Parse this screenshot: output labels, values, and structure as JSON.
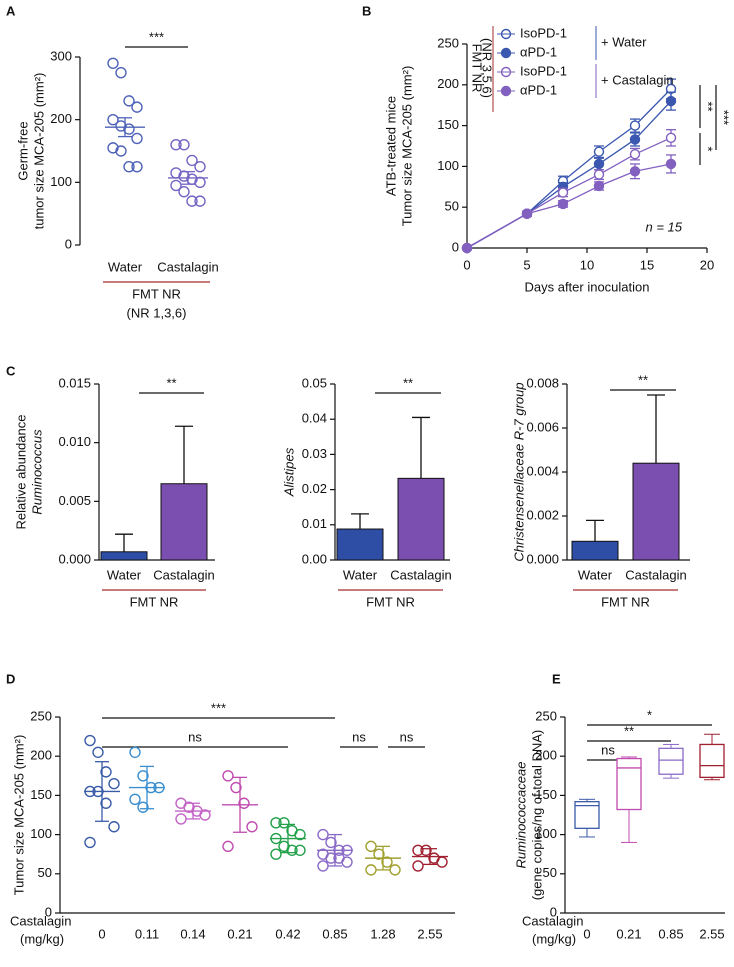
{
  "chart_data": [
    {
      "type": "strip",
      "panel": "A",
      "ylabel": [
        "Germ-free",
        "tumor size MCA-205 (mm²)"
      ],
      "categories": [
        "Water",
        "Castalagin"
      ],
      "colors": [
        "#4f63b8",
        "#7466c4"
      ],
      "points": [
        [
          290,
          275,
          230,
          220,
          200,
          190,
          185,
          170,
          155,
          150,
          125,
          125
        ],
        [
          160,
          160,
          135,
          125,
          115,
          110,
          105,
          100,
          95,
          85,
          70,
          70
        ]
      ],
      "means": [
        188,
        107
      ],
      "errors": [
        15,
        10
      ],
      "ylim": [
        0,
        300
      ],
      "yticks": [
        0,
        100,
        200,
        300
      ],
      "group": [
        "FMT NR",
        "(NR 1,3,6)"
      ],
      "group_color": "#a32b2b",
      "significance": [
        {
          "label": "***",
          "between": [
            "Water",
            "Castalagin"
          ]
        }
      ]
    },
    {
      "type": "line",
      "panel": "B",
      "ylabel": [
        "ATB-treated mice",
        "Tumor size MCA-205 (mm²)"
      ],
      "xlabel": "Days after inoculation",
      "x": [
        0,
        5,
        8,
        11,
        14,
        17
      ],
      "xlim": [
        0,
        20
      ],
      "xticks": [
        0,
        5,
        10,
        15,
        20
      ],
      "ylim": [
        0,
        250
      ],
      "yticks": [
        0,
        50,
        100,
        150,
        200,
        250
      ],
      "series": [
        {
          "name": "IsoPD-1",
          "color": "#3b57b0",
          "filled": false,
          "values": [
            0,
            42,
            82,
            118,
            150,
            195
          ],
          "errors": [
            0,
            3,
            6,
            7,
            8,
            12
          ]
        },
        {
          "name": "αPD-1",
          "color": "#3b57b0",
          "filled": true,
          "values": [
            0,
            42,
            75,
            103,
            133,
            180
          ],
          "errors": [
            0,
            3,
            5,
            7,
            8,
            11
          ]
        },
        {
          "name": "IsoPD-1",
          "color": "#8260c0",
          "filled": false,
          "values": [
            0,
            42,
            68,
            90,
            115,
            135
          ],
          "errors": [
            0,
            3,
            5,
            6,
            7,
            10
          ]
        },
        {
          "name": "αPD-1",
          "color": "#8260c0",
          "filled": true,
          "values": [
            0,
            42,
            54,
            76,
            94,
            103
          ],
          "errors": [
            0,
            3,
            4,
            5,
            9,
            11
          ]
        }
      ],
      "legend_groups": [
        {
          "label": "+ Water",
          "color": "#3b57b0"
        },
        {
          "label": "+ Castalagin",
          "color": "#8260c0"
        }
      ],
      "legend_note": [
        "FMT NR",
        "(NR 3,5,6)"
      ],
      "legend_note_color": "#a32b2b",
      "annotation": "n = 15",
      "significance": [
        "**",
        "***",
        "*"
      ]
    },
    {
      "type": "bar",
      "panel": "C",
      "ylabel": [
        "Relative abundance",
        "Ruminococcus"
      ],
      "categories": [
        "Water",
        "Castalagin"
      ],
      "colors": [
        "#2e4ea6",
        "#7b4fb0"
      ],
      "values": [
        0.0007,
        0.0065
      ],
      "errors": [
        0.0015,
        0.0049
      ],
      "ylim": [
        0,
        0.015
      ],
      "yticks": [
        {
          "value": 0,
          "label": "0.000"
        },
        0.005,
        {
          "value": 0.01,
          "label": "0.010"
        },
        {
          "value": 0.015,
          "label": "0.015"
        }
      ],
      "group": [
        "FMT NR"
      ],
      "group_color": "#a32b2b",
      "significance": [
        {
          "label": "**",
          "between": [
            "Water",
            "Castalagin"
          ]
        }
      ]
    },
    {
      "type": "bar",
      "ylabel": [
        "Alistipes"
      ],
      "categories": [
        "Water",
        "Castalagin"
      ],
      "colors": [
        "#2e4ea6",
        "#7b4fb0"
      ],
      "values": [
        0.0088,
        0.0232
      ],
      "errors": [
        0.0043,
        0.0173
      ],
      "ylim": [
        0,
        0.05
      ],
      "yticks": [
        {
          "value": 0,
          "label": "0.00"
        },
        {
          "value": 0.01,
          "label": "0.01"
        },
        {
          "value": 0.02,
          "label": "0.02"
        },
        {
          "value": 0.03,
          "label": "0.03"
        },
        {
          "value": 0.04,
          "label": "0.04"
        },
        {
          "value": 0.05,
          "label": "0.05"
        }
      ],
      "group": [
        "FMT NR"
      ],
      "group_color": "#a32b2b",
      "significance": [
        {
          "label": "**",
          "between": [
            "Water",
            "Castalagin"
          ]
        }
      ]
    },
    {
      "type": "bar",
      "ylabel": [
        "Christensenellaceae R-7 group"
      ],
      "categories": [
        "Water",
        "Castalagin"
      ],
      "colors": [
        "#2e4ea6",
        "#7b4fb0"
      ],
      "values": [
        0.00085,
        0.0044
      ],
      "errors": [
        0.00095,
        0.0031
      ],
      "ylim": [
        0,
        0.008
      ],
      "yticks": [
        {
          "value": 0,
          "label": "0.000"
        },
        {
          "value": 0.002,
          "label": "0.002"
        },
        {
          "value": 0.004,
          "label": "0.004"
        },
        {
          "value": 0.006,
          "label": "0.006"
        },
        {
          "value": 0.008,
          "label": "0.008"
        }
      ],
      "group": [
        "FMT NR"
      ],
      "group_color": "#a32b2b",
      "significance": [
        {
          "label": "**",
          "between": [
            "Water",
            "Castalagin"
          ]
        }
      ]
    },
    {
      "type": "strip",
      "panel": "D",
      "ylabel": [
        "Tumor size MCA-205 (mm²)"
      ],
      "xlabel": [
        "Castalagin",
        "(mg/kg)"
      ],
      "categories": [
        "0",
        "0.11",
        "0.14",
        "0.21",
        "0.42",
        "0.85",
        "1.28",
        "2.55"
      ],
      "colors": [
        "#3a5ba8",
        "#3a8fd0",
        "#c463c8",
        "#c04cb0",
        "#22a04a",
        "#8a6ac8",
        "#a0a030",
        "#a02030"
      ],
      "points": [
        [
          220,
          205,
          180,
          165,
          155,
          155,
          140,
          110,
          90
        ],
        [
          205,
          175,
          160,
          160,
          145,
          135
        ],
        [
          140,
          135,
          130,
          125,
          120
        ],
        [
          175,
          160,
          140,
          110,
          85
        ],
        [
          115,
          115,
          105,
          100,
          95,
          85,
          80,
          80,
          75
        ],
        [
          100,
          90,
          80,
          80,
          75,
          70,
          70,
          65,
          60
        ],
        [
          85,
          75,
          65,
          55,
          55
        ],
        [
          80,
          80,
          70,
          65,
          60
        ]
      ],
      "means": [
        155,
        160,
        130,
        138,
        95,
        80,
        70,
        72
      ],
      "errors": [
        38,
        27,
        10,
        35,
        18,
        20,
        15,
        10
      ],
      "ylim": [
        0,
        250
      ],
      "yticks": [
        0,
        50,
        100,
        150,
        200,
        250
      ],
      "significance": [
        {
          "label": "***",
          "between": [
            "0",
            "0.85"
          ]
        },
        {
          "label": "ns",
          "between": [
            "0",
            "0.42"
          ]
        },
        {
          "label": "ns",
          "between": [
            "0.85",
            "1.28"
          ]
        },
        {
          "label": "ns",
          "between": [
            "1.28",
            "2.55"
          ]
        }
      ]
    },
    {
      "type": "box",
      "panel": "E",
      "ylabel": [
        "Ruminococcaceae",
        "(gene copies/ng of total DNA)"
      ],
      "xlabel": [
        "Castalagin",
        "(mg/kg)"
      ],
      "categories": [
        "0",
        "0.21",
        "0.85",
        "2.55"
      ],
      "colors": [
        "#3a5ba8",
        "#c04cb0",
        "#8a6ac8",
        "#a02030"
      ],
      "boxes": [
        {
          "min": 97,
          "q1": 108,
          "median": 137,
          "q3": 142,
          "max": 145
        },
        {
          "min": 90,
          "q1": 132,
          "median": 185,
          "q3": 197,
          "max": 199
        },
        {
          "min": 172,
          "q1": 177,
          "median": 195,
          "q3": 210,
          "max": 215
        },
        {
          "min": 170,
          "q1": 173,
          "median": 188,
          "q3": 215,
          "max": 228
        }
      ],
      "ylim": [
        0,
        250
      ],
      "yticks": [
        0,
        50,
        100,
        150,
        200,
        250
      ],
      "significance": [
        {
          "label": "*",
          "between": [
            "0",
            "2.55"
          ]
        },
        {
          "label": "**",
          "between": [
            "0",
            "0.85"
          ]
        },
        {
          "label": "ns",
          "between": [
            "0",
            "0.21"
          ]
        }
      ]
    }
  ]
}
